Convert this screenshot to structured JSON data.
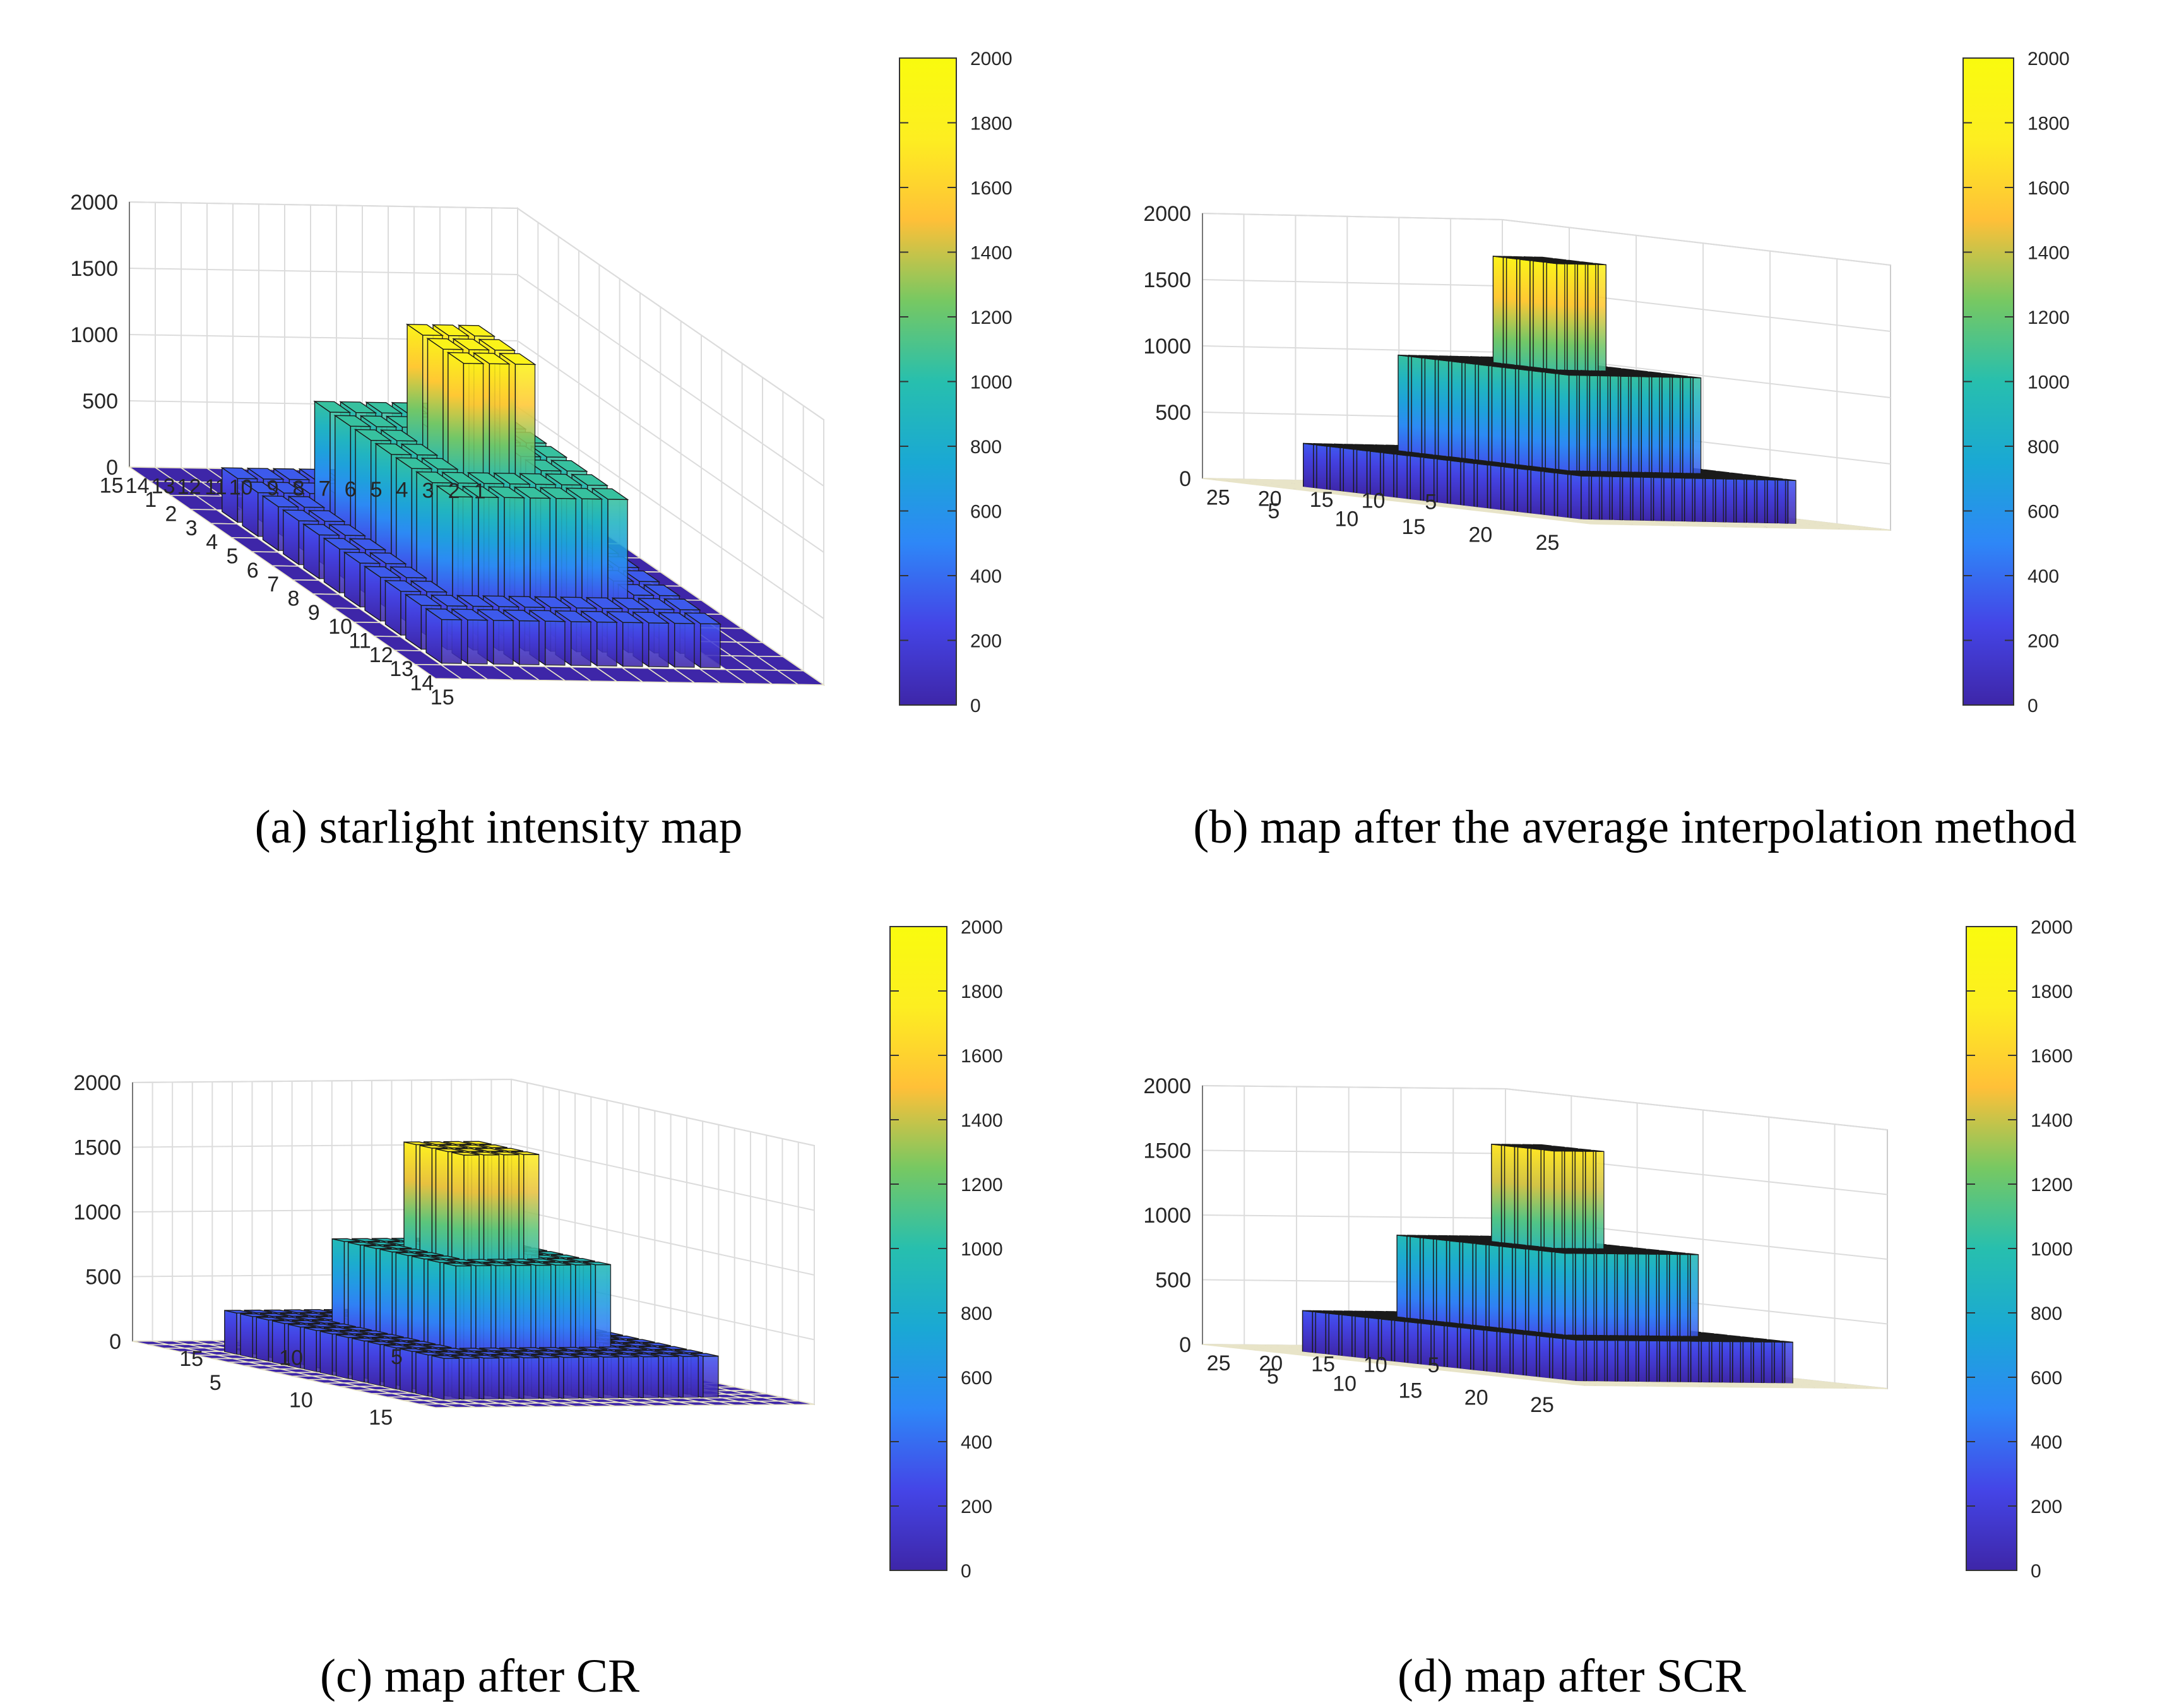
{
  "chart_data": [
    {
      "type": "bar3d",
      "panel": "a",
      "caption": "(a) starlight intensity map",
      "grid_size": 15,
      "zlim": [
        0,
        2000
      ],
      "z_ticks": [
        "0",
        "500",
        "1000",
        "1500",
        "2000"
      ],
      "x_ticks": [
        "1",
        "2",
        "3",
        "4",
        "5",
        "6",
        "7",
        "8",
        "9",
        "10",
        "11",
        "12",
        "13",
        "14",
        "15"
      ],
      "y_ticks": [
        "1",
        "2",
        "3",
        "4",
        "5",
        "6",
        "7",
        "8",
        "9",
        "10",
        "11",
        "12",
        "13",
        "14",
        "15"
      ],
      "levels": [
        {
          "range": [
            7,
            9
          ],
          "value": 1850
        },
        {
          "range": [
            5,
            11
          ],
          "value": 1050
        },
        {
          "range": [
            3,
            13
          ],
          "value": 330
        }
      ],
      "colorbar": {
        "min": 0,
        "max": 2000,
        "ticks": [
          "0",
          "200",
          "400",
          "600",
          "800",
          "1000",
          "1200",
          "1400",
          "1600",
          "1800",
          "2000"
        ]
      }
    },
    {
      "type": "bar3d",
      "panel": "b",
      "caption": "(b) map after the average interpolation method",
      "grid_size": 29,
      "zlim": [
        0,
        2000
      ],
      "z_ticks": [
        "0",
        "500",
        "1000",
        "1500",
        "2000"
      ],
      "x_ticks": [
        "5",
        "10",
        "15",
        "20",
        "25"
      ],
      "y_ticks": [
        "5",
        "10",
        "15",
        "20",
        "25"
      ],
      "levels": [
        {
          "range": [
            13,
            17
          ],
          "value": 1850
        },
        {
          "range": [
            9,
            21
          ],
          "value": 1050
        },
        {
          "range": [
            5,
            25
          ],
          "value": 330
        }
      ],
      "colorbar": {
        "min": 0,
        "max": 2000,
        "ticks": [
          "0",
          "200",
          "400",
          "600",
          "800",
          "1000",
          "1200",
          "1400",
          "1600",
          "1800",
          "2000"
        ]
      }
    },
    {
      "type": "bar3d",
      "panel": "c",
      "caption": "(c) map after CR",
      "grid_size": 19,
      "zlim": [
        0,
        2000
      ],
      "z_ticks": [
        "0",
        "500",
        "1000",
        "1500",
        "2000"
      ],
      "x_ticks": [
        "5",
        "10",
        "15"
      ],
      "y_ticks": [
        "5",
        "10",
        "15"
      ],
      "levels": [
        {
          "range": [
            8,
            11
          ],
          "value": 1750
        },
        {
          "range": [
            6,
            13
          ],
          "value": 950
        },
        {
          "range": [
            3,
            16
          ],
          "value": 320
        }
      ],
      "colorbar": {
        "min": 0,
        "max": 2000,
        "ticks": [
          "0",
          "200",
          "400",
          "600",
          "800",
          "1000",
          "1200",
          "1400",
          "1600",
          "1800",
          "2000"
        ]
      }
    },
    {
      "type": "bar3d",
      "panel": "d",
      "caption": "(d) map after SCR",
      "grid_size": 29,
      "zlim": [
        0,
        2000
      ],
      "z_ticks": [
        "0",
        "500",
        "1000",
        "1500",
        "2000"
      ],
      "x_ticks": [
        "5",
        "10",
        "15",
        "20",
        "25"
      ],
      "y_ticks": [
        "5",
        "10",
        "15",
        "20",
        "25"
      ],
      "levels": [
        {
          "range": [
            13,
            17
          ],
          "value": 1700
        },
        {
          "range": [
            9,
            21
          ],
          "value": 950
        },
        {
          "range": [
            5,
            25
          ],
          "value": 320
        }
      ],
      "colorbar": {
        "min": 0,
        "max": 2000,
        "ticks": [
          "0",
          "200",
          "400",
          "600",
          "800",
          "1000",
          "1200",
          "1400",
          "1600",
          "1800",
          "2000"
        ]
      }
    }
  ],
  "colormap": [
    "#3e26a8",
    "#4445e7",
    "#2e87f7",
    "#1aa8d4",
    "#27bfae",
    "#77c862",
    "#ffc038",
    "#fdee21",
    "#f9fb0e"
  ],
  "bar_edge_color": "#1a1a1a",
  "floor_color": "#3e26a8",
  "floor_grid_color": "#e8e4c8"
}
